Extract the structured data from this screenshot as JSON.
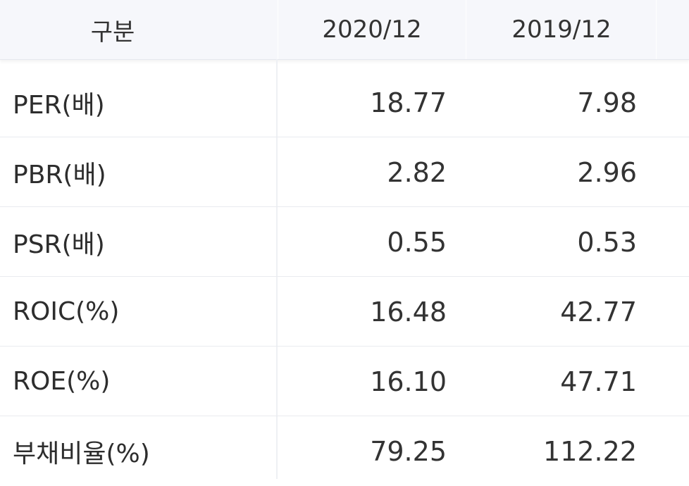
{
  "table": {
    "headers": {
      "category": "구분",
      "period1": "2020/12",
      "period2": "2019/12"
    },
    "rows": [
      {
        "label": "PER(배)",
        "v2020": "18.77",
        "v2019": "7.98"
      },
      {
        "label": "PBR(배)",
        "v2020": "2.82",
        "v2019": "2.96"
      },
      {
        "label": "PSR(배)",
        "v2020": "0.55",
        "v2019": "0.53"
      },
      {
        "label": "ROIC(%)",
        "v2020": "16.48",
        "v2019": "42.77"
      },
      {
        "label": "ROE(%)",
        "v2020": "16.10",
        "v2019": "47.71"
      },
      {
        "label": "부채비율(%)",
        "v2020": "79.25",
        "v2019": "112.22"
      }
    ]
  },
  "colors": {
    "header_bg": "#f6f7fb",
    "row_border": "#e9ebef",
    "text": "#2d2d2d"
  }
}
